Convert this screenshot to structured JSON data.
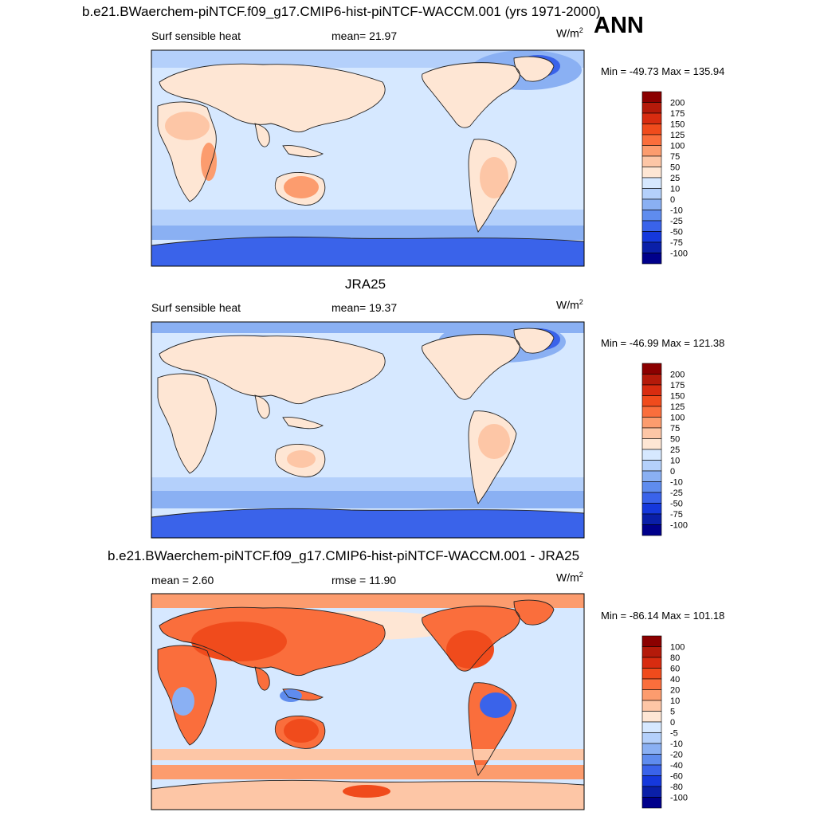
{
  "figure": {
    "season_label": "ANN",
    "units_base": "W/m",
    "units_exp": "2"
  },
  "panels": [
    {
      "title": "b.e21.BWaerchem-piNTCF.f09_g17.CMIP6-hist-piNTCF-WACCM.001 (yrs 1971-2000)",
      "left_label": "Surf sensible heat",
      "center_label": "mean=  21.97",
      "minmax": "Min = -49.73 Max = 135.94"
    },
    {
      "title": "JRA25",
      "left_label": "Surf sensible heat",
      "center_label": "mean=  19.37",
      "minmax": "Min = -46.99 Max = 121.38"
    },
    {
      "title": "b.e21.BWaerchem-piNTCF.f09_g17.CMIP6-hist-piNTCF-WACCM.001 - JRA25",
      "left_label": "mean =   2.60",
      "center_label": "rmse =  11.90",
      "minmax": "Min = -86.14 Max = 101.18"
    }
  ],
  "chart_data": [
    {
      "type": "heatmap",
      "title": "b.e21.BWaerchem-piNTCF.f09_g17.CMIP6-hist-piNTCF-WACCM.001 (yrs 1971-2000)",
      "variable": "Surf sensible heat",
      "units": "W/m2",
      "mean": 21.97,
      "min": -49.73,
      "max": 135.94,
      "colorbar_levels": [
        "200",
        "175",
        "150",
        "125",
        "100",
        "75",
        "50",
        "25",
        "10",
        "0",
        "-10",
        "-25",
        "-50",
        "-75",
        "-100"
      ],
      "colorbar_colors": [
        "#8b0000",
        "#b41a0a",
        "#d82c10",
        "#f04b1c",
        "#fa6e3c",
        "#fc9c6e",
        "#fdc6a6",
        "#fee6d4",
        "#d6e8ff",
        "#b4d0fb",
        "#8ab0f3",
        "#5f8cee",
        "#3a63ea",
        "#1538dc",
        "#0a1fa8",
        "#00008b"
      ]
    },
    {
      "type": "heatmap",
      "title": "JRA25",
      "variable": "Surf sensible heat",
      "units": "W/m2",
      "mean": 19.37,
      "min": -46.99,
      "max": 121.38,
      "colorbar_levels": [
        "200",
        "175",
        "150",
        "125",
        "100",
        "75",
        "50",
        "25",
        "10",
        "0",
        "-10",
        "-25",
        "-50",
        "-75",
        "-100"
      ],
      "colorbar_colors": [
        "#8b0000",
        "#b41a0a",
        "#d82c10",
        "#f04b1c",
        "#fa6e3c",
        "#fc9c6e",
        "#fdc6a6",
        "#fee6d4",
        "#d6e8ff",
        "#b4d0fb",
        "#8ab0f3",
        "#5f8cee",
        "#3a63ea",
        "#1538dc",
        "#0a1fa8",
        "#00008b"
      ]
    },
    {
      "type": "heatmap",
      "title": "b.e21.BWaerchem-piNTCF.f09_g17.CMIP6-hist-piNTCF-WACCM.001 - JRA25",
      "variable": "difference",
      "units": "W/m2",
      "mean": 2.6,
      "rmse": 11.9,
      "min": -86.14,
      "max": 101.18,
      "colorbar_levels": [
        "100",
        "80",
        "60",
        "40",
        "20",
        "10",
        "5",
        "0",
        "-5",
        "-10",
        "-20",
        "-40",
        "-60",
        "-80",
        "-100"
      ],
      "colorbar_colors": [
        "#8b0000",
        "#b41a0a",
        "#d82c10",
        "#f04b1c",
        "#fa6e3c",
        "#fc9c6e",
        "#fdc6a6",
        "#fee6d4",
        "#d6e8ff",
        "#b4d0fb",
        "#8ab0f3",
        "#5f8cee",
        "#3a63ea",
        "#1538dc",
        "#0a1fa8",
        "#00008b"
      ]
    }
  ]
}
